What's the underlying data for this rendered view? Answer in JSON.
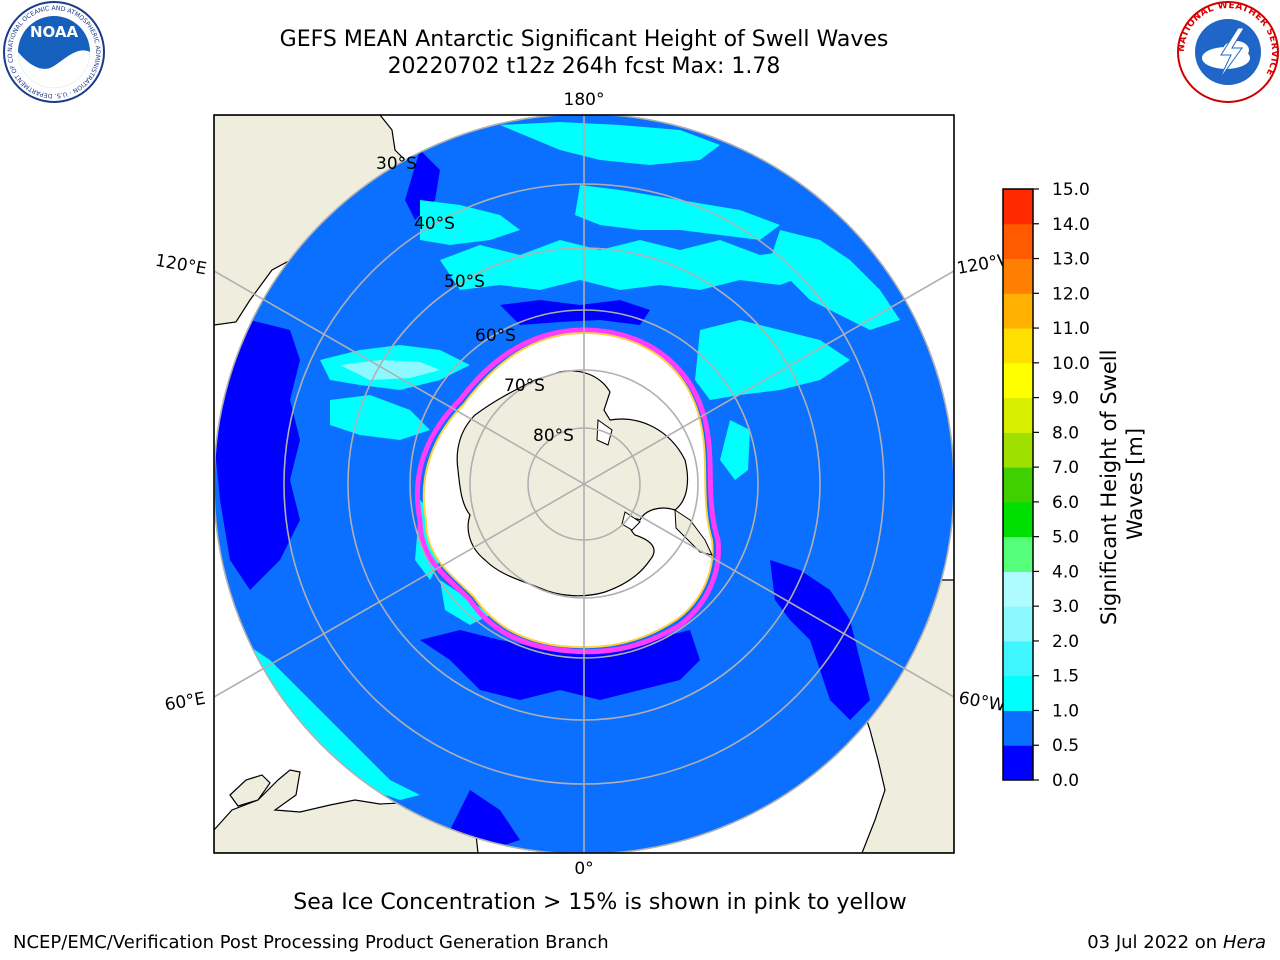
{
  "title_line1": "GEFS MEAN Antarctic Significant Height of Swell Waves",
  "title_line2": "20220702 t12z 264h fcst   Max: 1.78",
  "logos": {
    "left": {
      "name": "NOAA",
      "text": "NOAA",
      "ring_text": "NATIONAL OCEANIC AND ATMOSPHERIC ADMINISTRATION · U.S. DEPARTMENT OF COMMERCE"
    },
    "right": {
      "name": "National Weather Service",
      "ring_text": "NATIONAL WEATHER SERVICE"
    }
  },
  "map": {
    "projection": "south polar stereographic",
    "longitude_labels": {
      "top": "180°",
      "bottom": "0°",
      "upper_left": "120°E",
      "upper_right": "120°W",
      "lower_left": "60°E",
      "lower_right": "60°W"
    },
    "latitude_labels": [
      "30°S",
      "40°S",
      "50°S",
      "60°S",
      "70°S",
      "80°S"
    ]
  },
  "colorbar": {
    "label": "Significant Height of Swell Waves [m]",
    "ticks": [
      "0.0",
      "0.5",
      "1.0",
      "1.5",
      "2.0",
      "3.0",
      "4.0",
      "5.0",
      "6.0",
      "7.0",
      "8.0",
      "9.0",
      "10.0",
      "11.0",
      "12.0",
      "13.0",
      "14.0",
      "15.0"
    ],
    "colors": [
      "#0000ff",
      "#0b6fff",
      "#00ffff",
      "#3ff5ff",
      "#8cf8ff",
      "#aefcff",
      "#55ff7a",
      "#00e000",
      "#40d000",
      "#a0e000",
      "#d8f000",
      "#ffff00",
      "#ffe000",
      "#ffb000",
      "#ff8000",
      "#ff5a00",
      "#ff2a00",
      "#ff0000"
    ]
  },
  "note": "Sea Ice Concentration > 15% is shown in pink to yellow",
  "footer": {
    "left": "NCEP/EMC/Verification Post Processing Product Generation Branch",
    "right_date": "03 Jul 2022 on ",
    "right_machine": "Hera"
  }
}
